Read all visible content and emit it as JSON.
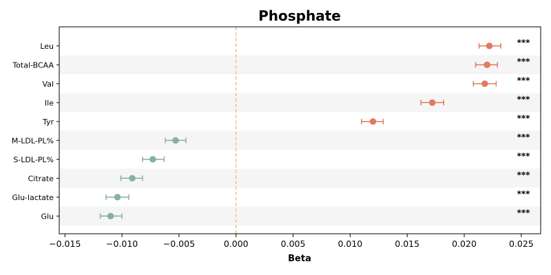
{
  "chart_data": {
    "type": "forest",
    "title": "Phosphate",
    "xlabel": "Beta",
    "xlim": [
      -0.0155,
      0.0267
    ],
    "xticks": [
      -0.015,
      -0.01,
      -0.005,
      0.0,
      0.005,
      0.01,
      0.015,
      0.02,
      0.025
    ],
    "xtick_labels": [
      "−0.015",
      "−0.010",
      "−0.005",
      "0.000",
      "0.005",
      "0.010",
      "0.015",
      "0.020",
      "0.025"
    ],
    "reference_line": 0.0,
    "grid": false,
    "alternating_row_shading": true,
    "colors": {
      "positive": "#e07b62",
      "negative": "#86b29b",
      "reference": "#f4c48a",
      "stripe": "#f5f5f5"
    },
    "rows": [
      {
        "label": "Leu",
        "beta": 0.0222,
        "ci_low": 0.0213,
        "ci_high": 0.0232,
        "sig": "***"
      },
      {
        "label": "Total-BCAA",
        "beta": 0.022,
        "ci_low": 0.021,
        "ci_high": 0.0229,
        "sig": "***"
      },
      {
        "label": "Val",
        "beta": 0.0218,
        "ci_low": 0.0208,
        "ci_high": 0.0228,
        "sig": "***"
      },
      {
        "label": "Ile",
        "beta": 0.0172,
        "ci_low": 0.0162,
        "ci_high": 0.0182,
        "sig": "***"
      },
      {
        "label": "Tyr",
        "beta": 0.012,
        "ci_low": 0.011,
        "ci_high": 0.0129,
        "sig": "***"
      },
      {
        "label": "M-LDL-PL%",
        "beta": -0.0053,
        "ci_low": -0.0062,
        "ci_high": -0.0044,
        "sig": "***"
      },
      {
        "label": "S-LDL-PL%",
        "beta": -0.0073,
        "ci_low": -0.0082,
        "ci_high": -0.0063,
        "sig": "***"
      },
      {
        "label": "Citrate",
        "beta": -0.0091,
        "ci_low": -0.0101,
        "ci_high": -0.0082,
        "sig": "***"
      },
      {
        "label": "Glu-lactate",
        "beta": -0.0104,
        "ci_low": -0.0114,
        "ci_high": -0.0094,
        "sig": "***"
      },
      {
        "label": "Glu",
        "beta": -0.011,
        "ci_low": -0.0119,
        "ci_high": -0.01,
        "sig": "***"
      }
    ]
  }
}
